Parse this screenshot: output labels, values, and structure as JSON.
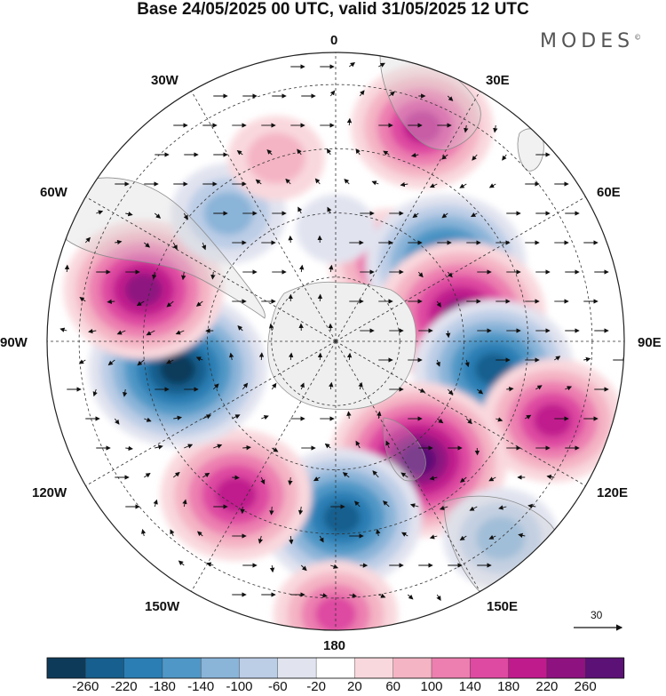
{
  "title": "Base 24/05/2025 00 UTC, valid 31/05/2025 12 UTC",
  "brand": "MODES",
  "brand_mark": "©",
  "longitude_labels": {
    "top": "0",
    "e30": "30E",
    "e60": "60E",
    "e90": "90E",
    "e120": "120E",
    "e150": "150E",
    "bottom": "180",
    "w150": "150W",
    "w120": "120W",
    "w90": "90W",
    "w60": "60W",
    "w30": "30W"
  },
  "vector_scale": {
    "value": "30"
  },
  "colorbar": {
    "labels": [
      "-260",
      "-220",
      "-180",
      "-140",
      "-100",
      "-60",
      "-20",
      "20",
      "60",
      "100",
      "140",
      "180",
      "220",
      "260"
    ],
    "colors": [
      "#0e3a5a",
      "#175f8e",
      "#2b7eb4",
      "#4f97c6",
      "#8ab4d8",
      "#bccde6",
      "#e1e3ef",
      "#ffffff",
      "#f9d8dd",
      "#f4b4c4",
      "#ec7fb0",
      "#de4aa1",
      "#c01b8d",
      "#8e1380",
      "#5b1176"
    ]
  },
  "anomaly_centers": [
    {
      "lon": 22,
      "lat_deg_from_pole": 72,
      "value": 180
    },
    {
      "lon": 35,
      "lat_deg_from_pole": 30,
      "value": 140
    },
    {
      "lon": 55,
      "lat_deg_from_pole": 42,
      "value": -220
    },
    {
      "lon": 78,
      "lat_deg_from_pole": 40,
      "value": 240
    },
    {
      "lon": 100,
      "lat_deg_from_pole": 50,
      "value": -220
    },
    {
      "lon": 110,
      "lat_deg_from_pole": 72,
      "value": 180
    },
    {
      "lon": 145,
      "lat_deg_from_pole": 45,
      "value": 260
    },
    {
      "lon": 178,
      "lat_deg_from_pole": 55,
      "value": -220
    },
    {
      "lon": -147,
      "lat_deg_from_pole": 57,
      "value": 200
    },
    {
      "lon": -100,
      "lat_deg_from_pole": 50,
      "value": -260
    },
    {
      "lon": -75,
      "lat_deg_from_pole": 62,
      "value": 220
    },
    {
      "lon": -40,
      "lat_deg_from_pole": 52,
      "value": -120
    },
    {
      "lon": -18,
      "lat_deg_from_pole": 60,
      "value": 80
    },
    {
      "lon": 0,
      "lat_deg_from_pole": 35,
      "value": -40
    },
    {
      "lon": 180,
      "lat_deg_from_pole": 85,
      "value": 140
    },
    {
      "lon": 140,
      "lat_deg_from_pole": 80,
      "value": -120
    }
  ]
}
